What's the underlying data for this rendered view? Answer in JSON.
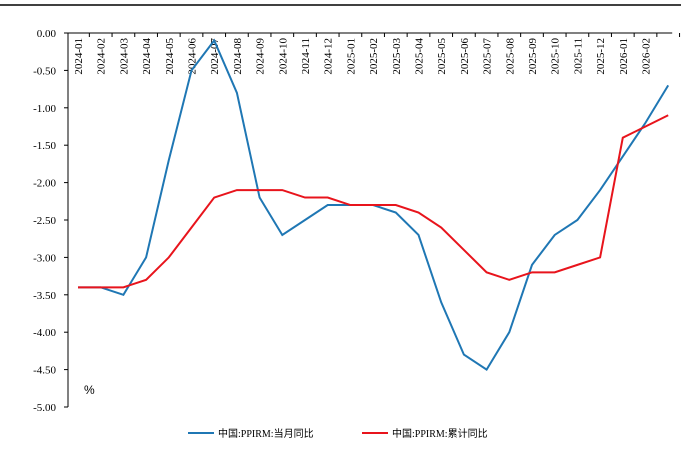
{
  "chart_data": {
    "type": "line",
    "categories": [
      "2024-01",
      "2024-02",
      "2024-03",
      "2024-04",
      "2024-05",
      "2024-06",
      "2024-07",
      "2024-08",
      "2024-09",
      "2024-10",
      "2024-11",
      "2024-12",
      "2025-01",
      "2025-02",
      "2025-03",
      "2025-04",
      "2025-05",
      "2025-06",
      "2025-07",
      "2025-08",
      "2025-09",
      "2025-10",
      "2025-11",
      "2025-12",
      "2026-01",
      "2026-02",
      null
    ],
    "series": [
      {
        "name": "中国:PPIRM:当月同比",
        "color": "#1f77b4",
        "values": [
          -3.4,
          -3.4,
          -3.5,
          -3.0,
          -1.7,
          -0.5,
          -0.1,
          -0.8,
          -2.2,
          -2.7,
          -2.5,
          -2.3,
          -2.3,
          -2.3,
          -2.4,
          -2.7,
          -3.6,
          -4.3,
          -4.5,
          -4.0,
          -3.1,
          -2.7,
          -2.5,
          -2.1,
          -1.65,
          -1.2,
          -0.7
        ]
      },
      {
        "name": "中国:PPIRM:累计同比",
        "color": "#e8141c",
        "values": [
          -3.4,
          -3.4,
          -3.4,
          -3.3,
          -3.0,
          -2.6,
          -2.2,
          -2.1,
          -2.1,
          -2.1,
          -2.2,
          -2.2,
          -2.3,
          -2.3,
          -2.3,
          -2.4,
          -2.6,
          -2.9,
          -3.2,
          -3.3,
          -3.2,
          -3.2,
          -3.1,
          -3.0,
          -1.4,
          -1.25,
          -1.1
        ]
      }
    ],
    "ylim": [
      -5,
      0
    ],
    "yticks": [
      {
        "value": 0,
        "label": "0.00"
      },
      {
        "value": -0.5,
        "label": "-0.50"
      },
      {
        "value": -1,
        "label": "-1.00"
      },
      {
        "value": -1.5,
        "label": "-1.50"
      },
      {
        "value": -2,
        "label": "-2.00"
      },
      {
        "value": -2.5,
        "label": "-2.50"
      },
      {
        "value": -3,
        "label": "-3.00"
      },
      {
        "value": -3.5,
        "label": "-3.50"
      },
      {
        "value": -4,
        "label": "-4.00"
      },
      {
        "value": -4.5,
        "label": "-4.50"
      },
      {
        "value": -5,
        "label": "-5.00"
      }
    ],
    "annotation": "%",
    "legend": "bottom"
  }
}
